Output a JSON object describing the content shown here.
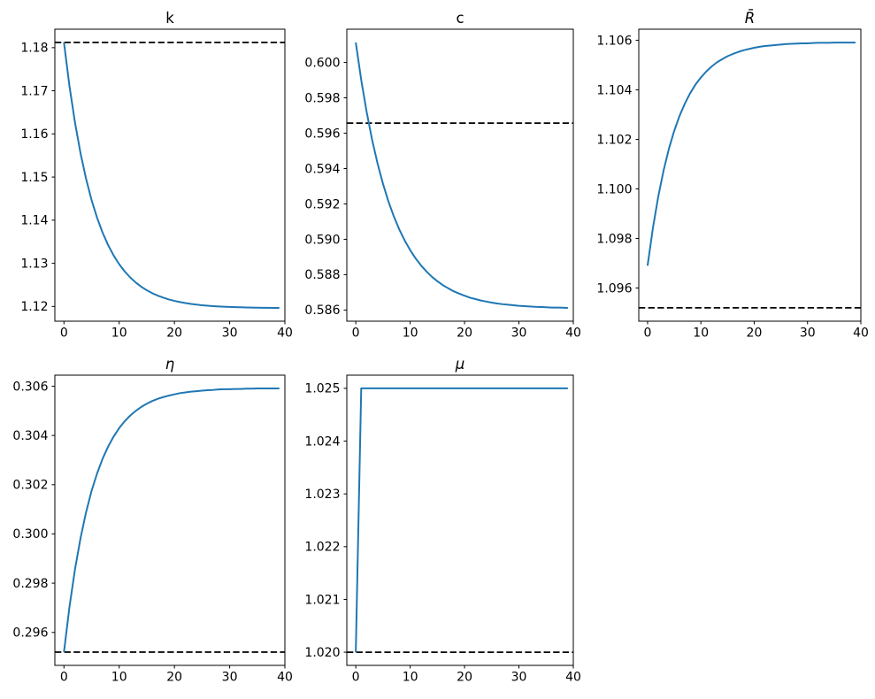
{
  "figure": {
    "background": "#ffffff",
    "series_color": "#1f77b4",
    "steady_state_line_color": "#000000",
    "axis_color": "#000000"
  },
  "chart_data": [
    {
      "type": "line",
      "title": "k",
      "title_is_math": false,
      "legend": null,
      "grid": false,
      "xlim": [
        -1.65,
        40
      ],
      "ylim": [
        1.11658,
        1.18428
      ],
      "xticks": [
        0,
        10,
        20,
        30,
        40
      ],
      "xtick_labels": [
        "0",
        "10",
        "20",
        "30",
        "40"
      ],
      "yticks": [
        1.12,
        1.13,
        1.14,
        1.15,
        1.16,
        1.17,
        1.18
      ],
      "ytick_labels": [
        "1.12",
        "1.13",
        "1.14",
        "1.15",
        "1.16",
        "1.17",
        "1.18"
      ],
      "steady_state_value": 1.1812,
      "x": [
        0,
        1,
        2,
        3,
        4,
        5,
        6,
        7,
        8,
        9,
        10,
        11,
        12,
        13,
        14,
        15,
        16,
        17,
        18,
        19,
        20,
        21,
        22,
        23,
        24,
        25,
        26,
        27,
        28,
        29,
        30,
        31,
        32,
        33,
        34,
        35,
        36,
        37,
        38,
        39
      ],
      "y": [
        1.1812,
        1.17106,
        1.16259,
        1.15551,
        1.1496,
        1.14466,
        1.14054,
        1.13709,
        1.13421,
        1.1318,
        1.12979,
        1.12812,
        1.12671,
        1.12554,
        1.12456,
        1.12375,
        1.12306,
        1.1225,
        1.12202,
        1.12162,
        1.12129,
        1.12101,
        1.12078,
        1.12059,
        1.12042,
        1.12028,
        1.12017,
        1.12008,
        1.12,
        1.11993,
        1.11988,
        1.11983,
        1.1198,
        1.11976,
        1.11974,
        1.11971,
        1.11969,
        1.11968,
        1.11967,
        1.11966
      ]
    },
    {
      "type": "line",
      "title": "c",
      "title_is_math": false,
      "legend": null,
      "grid": false,
      "xlim": [
        -1.65,
        40
      ],
      "ylim": [
        0.58537,
        0.60188
      ],
      "xticks": [
        0,
        10,
        20,
        30,
        40
      ],
      "xtick_labels": [
        "0",
        "10",
        "20",
        "30",
        "40"
      ],
      "yticks": [
        0.586,
        0.588,
        0.59,
        0.592,
        0.594,
        0.596,
        0.598,
        0.6
      ],
      "ytick_labels": [
        "0.586",
        "0.588",
        "0.590",
        "0.592",
        "0.594",
        "0.596",
        "0.598",
        "0.600"
      ],
      "steady_state_value": 0.59657,
      "x": [
        0,
        1,
        2,
        3,
        4,
        5,
        6,
        7,
        8,
        9,
        10,
        11,
        12,
        13,
        14,
        15,
        16,
        17,
        18,
        19,
        20,
        21,
        22,
        23,
        24,
        25,
        26,
        27,
        28,
        29,
        30,
        31,
        32,
        33,
        34,
        35,
        36,
        37,
        38,
        39
      ],
      "y": [
        0.60113,
        0.59901,
        0.5972,
        0.59563,
        0.59429,
        0.59314,
        0.59214,
        0.59129,
        0.59056,
        0.58993,
        0.58939,
        0.58892,
        0.58852,
        0.58818,
        0.58788,
        0.58763,
        0.58741,
        0.58723,
        0.58706,
        0.58693,
        0.58681,
        0.5867,
        0.58662,
        0.58654,
        0.58648,
        0.58642,
        0.58637,
        0.58633,
        0.5863,
        0.58627,
        0.58624,
        0.58622,
        0.5862,
        0.58618,
        0.58617,
        0.58616,
        0.58614,
        0.58614,
        0.58613,
        0.58612
      ]
    },
    {
      "type": "line",
      "title": "R̄",
      "title_is_math": true,
      "legend": null,
      "grid": false,
      "xlim": [
        -1.65,
        40
      ],
      "ylim": [
        1.09466,
        1.10645
      ],
      "xticks": [
        0,
        10,
        20,
        30,
        40
      ],
      "xtick_labels": [
        "0",
        "10",
        "20",
        "30",
        "40"
      ],
      "yticks": [
        1.096,
        1.098,
        1.1,
        1.102,
        1.104,
        1.106
      ],
      "ytick_labels": [
        "1.096",
        "1.098",
        "1.100",
        "1.102",
        "1.104",
        "1.106"
      ],
      "steady_state_value": 1.0952,
      "x": [
        0,
        1,
        2,
        3,
        4,
        5,
        6,
        7,
        8,
        9,
        10,
        11,
        12,
        13,
        14,
        15,
        16,
        17,
        18,
        19,
        20,
        21,
        22,
        23,
        24,
        25,
        26,
        27,
        28,
        29,
        30,
        31,
        32,
        33,
        34,
        35,
        36,
        37,
        38,
        39
      ],
      "y": [
        1.0969,
        1.09842,
        1.09969,
        1.10074,
        1.10162,
        1.10235,
        1.10295,
        1.10345,
        1.10387,
        1.10422,
        1.1045,
        1.10474,
        1.10494,
        1.10511,
        1.10524,
        1.10536,
        1.10545,
        1.10553,
        1.1056,
        1.10565,
        1.1057,
        1.10574,
        1.10577,
        1.10579,
        1.10581,
        1.10583,
        1.10585,
        1.10586,
        1.10587,
        1.10588,
        1.10588,
        1.10589,
        1.1059,
        1.1059,
        1.1059,
        1.10591,
        1.10591,
        1.10591,
        1.10591,
        1.10591
      ]
    },
    {
      "type": "line",
      "title": "η",
      "title_is_math": true,
      "legend": null,
      "grid": false,
      "xlim": [
        -1.65,
        40
      ],
      "ylim": [
        0.29466,
        0.30645
      ],
      "xticks": [
        0,
        10,
        20,
        30,
        40
      ],
      "xtick_labels": [
        "0",
        "10",
        "20",
        "30",
        "40"
      ],
      "yticks": [
        0.296,
        0.298,
        0.3,
        0.302,
        0.304,
        0.306
      ],
      "ytick_labels": [
        "0.296",
        "0.298",
        "0.300",
        "0.302",
        "0.304",
        "0.306"
      ],
      "steady_state_value": 0.2952,
      "x": [
        0,
        1,
        2,
        3,
        4,
        5,
        6,
        7,
        8,
        9,
        10,
        11,
        12,
        13,
        14,
        15,
        16,
        17,
        18,
        19,
        20,
        21,
        22,
        23,
        24,
        25,
        26,
        27,
        28,
        29,
        30,
        31,
        32,
        33,
        34,
        35,
        36,
        37,
        38,
        39
      ],
      "y": [
        0.2952,
        0.29704,
        0.29857,
        0.29983,
        0.30088,
        0.30175,
        0.30246,
        0.30306,
        0.30355,
        0.30396,
        0.3043,
        0.30458,
        0.30481,
        0.305,
        0.30516,
        0.30529,
        0.3054,
        0.30549,
        0.30556,
        0.30562,
        0.30567,
        0.30572,
        0.30575,
        0.30578,
        0.3058,
        0.30582,
        0.30584,
        0.30585,
        0.30587,
        0.30588,
        0.30588,
        0.30589,
        0.30589,
        0.3059,
        0.3059,
        0.30591,
        0.30591,
        0.30591,
        0.30591,
        0.30591
      ]
    },
    {
      "type": "line",
      "title": "μ",
      "title_is_math": true,
      "legend": null,
      "grid": false,
      "xlim": [
        -1.65,
        40
      ],
      "ylim": [
        1.01975,
        1.02525
      ],
      "xticks": [
        0,
        10,
        20,
        30,
        40
      ],
      "xtick_labels": [
        "0",
        "10",
        "20",
        "30",
        "40"
      ],
      "yticks": [
        1.02,
        1.021,
        1.022,
        1.023,
        1.024,
        1.025
      ],
      "ytick_labels": [
        "1.020",
        "1.021",
        "1.022",
        "1.023",
        "1.024",
        "1.025"
      ],
      "steady_state_value": 1.02,
      "x": [
        0,
        1,
        2,
        3,
        4,
        5,
        6,
        7,
        8,
        9,
        10,
        11,
        12,
        13,
        14,
        15,
        16,
        17,
        18,
        19,
        20,
        21,
        22,
        23,
        24,
        25,
        26,
        27,
        28,
        29,
        30,
        31,
        32,
        33,
        34,
        35,
        36,
        37,
        38,
        39
      ],
      "y": [
        1.02,
        1.025,
        1.025,
        1.025,
        1.025,
        1.025,
        1.025,
        1.025,
        1.025,
        1.025,
        1.025,
        1.025,
        1.025,
        1.025,
        1.025,
        1.025,
        1.025,
        1.025,
        1.025,
        1.025,
        1.025,
        1.025,
        1.025,
        1.025,
        1.025,
        1.025,
        1.025,
        1.025,
        1.025,
        1.025,
        1.025,
        1.025,
        1.025,
        1.025,
        1.025,
        1.025,
        1.025,
        1.025,
        1.025,
        1.025
      ]
    }
  ]
}
